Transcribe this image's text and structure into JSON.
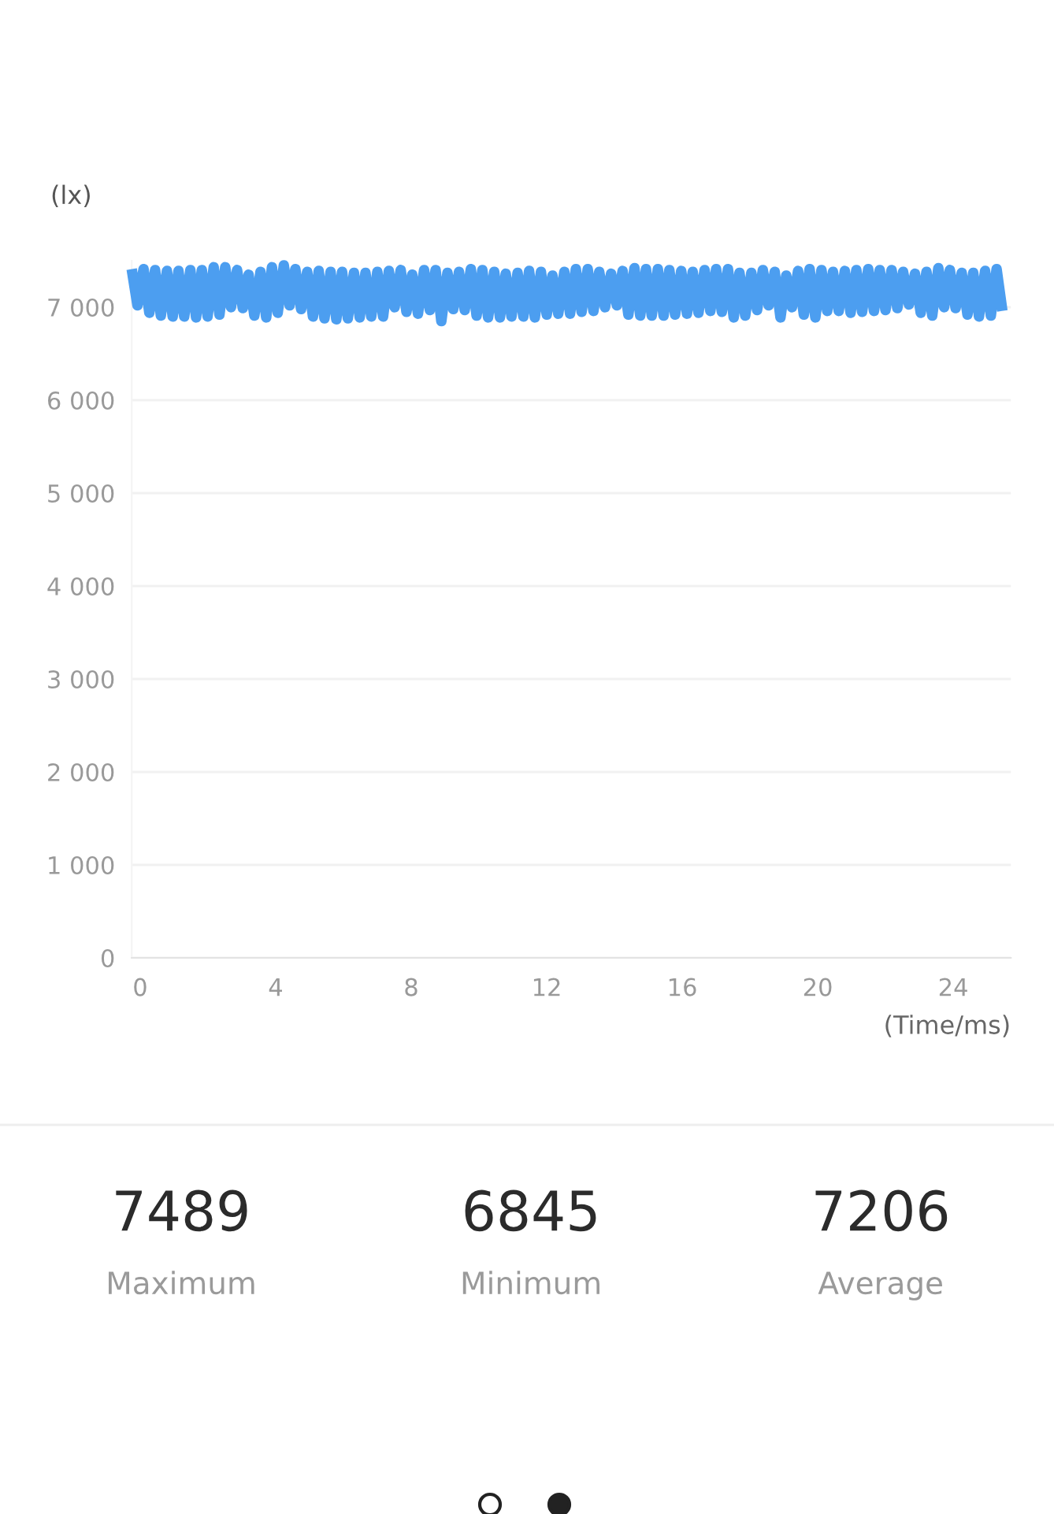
{
  "chart_data": [
    {
      "type": "line",
      "xlabel": "(Time/ms)",
      "ylabel": "(lx)",
      "grid": "y",
      "xlim": [
        -0.25,
        25.7
      ],
      "xticks": [
        0,
        4,
        8,
        12,
        16,
        20,
        24
      ],
      "ylim": [
        0,
        7500
      ],
      "yticks": [
        0,
        {
          "value": 1000,
          "label": "1 000"
        },
        {
          "value": 2000,
          "label": "2 000"
        },
        {
          "value": 3000,
          "label": "3 000"
        },
        {
          "value": 4000,
          "label": "4 000"
        },
        {
          "value": 5000,
          "label": "5 000"
        },
        {
          "value": 6000,
          "label": "6 000"
        },
        {
          "value": 7000,
          "label": "7 000"
        }
      ],
      "series": [
        {
          "color": "#4c9ef0",
          "x": [
            -0.25,
            -0.08,
            0.1,
            0.27,
            0.44,
            0.61,
            0.79,
            0.96,
            1.13,
            1.3,
            1.48,
            1.65,
            1.82,
            1.99,
            2.17,
            2.34,
            2.51,
            2.68,
            2.86,
            3.03,
            3.2,
            3.37,
            3.55,
            3.72,
            3.89,
            4.06,
            4.24,
            4.41,
            4.58,
            4.75,
            4.93,
            5.1,
            5.27,
            5.44,
            5.62,
            5.79,
            5.96,
            6.13,
            6.31,
            6.48,
            6.65,
            6.82,
            7.0,
            7.17,
            7.34,
            7.51,
            7.69,
            7.86,
            8.03,
            8.2,
            8.38,
            8.55,
            8.72,
            8.89,
            9.07,
            9.24,
            9.41,
            9.58,
            9.76,
            9.93,
            10.1,
            10.27,
            10.45,
            10.62,
            10.79,
            10.96,
            11.14,
            11.31,
            11.48,
            11.65,
            11.83,
            12.0,
            12.17,
            12.34,
            12.52,
            12.69,
            12.86,
            13.03,
            13.21,
            13.38,
            13.55,
            13.72,
            13.9,
            14.07,
            14.24,
            14.41,
            14.59,
            14.76,
            14.93,
            15.1,
            15.28,
            15.45,
            15.62,
            15.79,
            15.97,
            16.14,
            16.31,
            16.48,
            16.66,
            16.83,
            17.0,
            17.17,
            17.35,
            17.52,
            17.69,
            17.86,
            18.04,
            18.21,
            18.38,
            18.55,
            18.73,
            18.9,
            19.07,
            19.24,
            19.42,
            19.59,
            19.76,
            19.93,
            20.11,
            20.28,
            20.45,
            20.62,
            20.8,
            20.97,
            21.14,
            21.31,
            21.49,
            21.66,
            21.83,
            22.0,
            22.18,
            22.35,
            22.52,
            22.69,
            22.87,
            23.04,
            23.21,
            23.38,
            23.56,
            23.73,
            23.9,
            24.07,
            24.25,
            24.42,
            24.59,
            24.76,
            24.94,
            25.11,
            25.28,
            25.45
          ],
          "values": [
            7410,
            7020,
            7410,
            6940,
            7400,
            6910,
            7390,
            6900,
            7390,
            6900,
            7400,
            6890,
            7400,
            6900,
            7430,
            6920,
            7430,
            7000,
            7400,
            6990,
            7350,
            6910,
            7380,
            6890,
            7430,
            6940,
            7450,
            7020,
            7410,
            6980,
            7380,
            6900,
            7390,
            6880,
            7380,
            6870,
            7380,
            6880,
            7370,
            6890,
            7370,
            6900,
            7380,
            6900,
            7390,
            7000,
            7400,
            6950,
            7350,
            6930,
            7400,
            6970,
            7400,
            6850,
            7370,
            6980,
            7380,
            6970,
            7410,
            6910,
            7400,
            6890,
            7380,
            6890,
            7360,
            6900,
            7370,
            6900,
            7390,
            6890,
            7380,
            6920,
            7340,
            6930,
            7380,
            6930,
            7410,
            6950,
            7410,
            6960,
            7380,
            7000,
            7360,
            7020,
            7390,
            6920,
            7420,
            6910,
            7410,
            6910,
            7410,
            6910,
            7400,
            6920,
            7390,
            6930,
            7380,
            6940,
            7400,
            6960,
            7410,
            6950,
            7410,
            6890,
            7370,
            6910,
            7370,
            6970,
            7400,
            7020,
            7380,
            6890,
            7340,
            7000,
            7390,
            6920,
            7410,
            6890,
            7400,
            6960,
            7380,
            6960,
            7390,
            6940,
            7400,
            6950,
            7410,
            6960,
            7400,
            6970,
            7400,
            6990,
            7380,
            7030,
            7360,
            6940,
            7380,
            6910,
            7420,
            7000,
            7400,
            6990,
            7370,
            6920,
            7370,
            6900,
            7390,
            6910,
            7410,
            6960
          ]
        }
      ]
    },
    {
      "type": "other",
      "categories": [
        "Maximum",
        "Minimum",
        "Average"
      ],
      "values": [
        7489,
        6845,
        7206
      ],
      "data_labels": true
    }
  ]
}
